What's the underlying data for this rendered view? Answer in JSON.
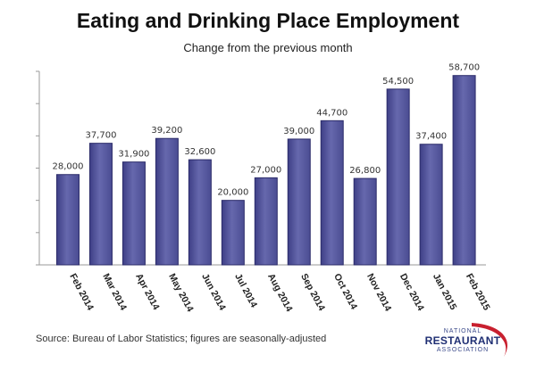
{
  "chart_data": {
    "type": "bar",
    "title": "Eating and Drinking Place Employment",
    "subtitle": "Change from the previous month",
    "xlabel": "",
    "ylabel": "",
    "ylim": [
      0,
      60000
    ],
    "categories": [
      "Feb 2014",
      "Mar 2014",
      "Apr 2014",
      "May 2014",
      "Jun 2014",
      "Jul 2014",
      "Aug 2014",
      "Sep 2014",
      "Oct 2014",
      "Nov 2014",
      "Dec 2014",
      "Jan 2015",
      "Feb 2015"
    ],
    "values": [
      28000,
      37700,
      31900,
      39200,
      32600,
      20000,
      27000,
      39000,
      44700,
      26800,
      54500,
      37400,
      58700
    ],
    "data_labels": [
      "28,000",
      "37,700",
      "31,900",
      "39,200",
      "32,600",
      "20,000",
      "27,000",
      "39,000",
      "44,700",
      "26,800",
      "54,500",
      "37,400",
      "58,700"
    ],
    "grid": false,
    "bar_color": "#5d5fa4",
    "bar_edge_color": "#2c2c6a"
  },
  "source_note": "Source: Bureau of Labor Statistics; figures are seasonally-adjusted",
  "logo": {
    "line1": "NATIONAL",
    "line2": "RESTAURANT",
    "line3": "ASSOCIATION",
    "swoosh_color": "#c8202f"
  }
}
